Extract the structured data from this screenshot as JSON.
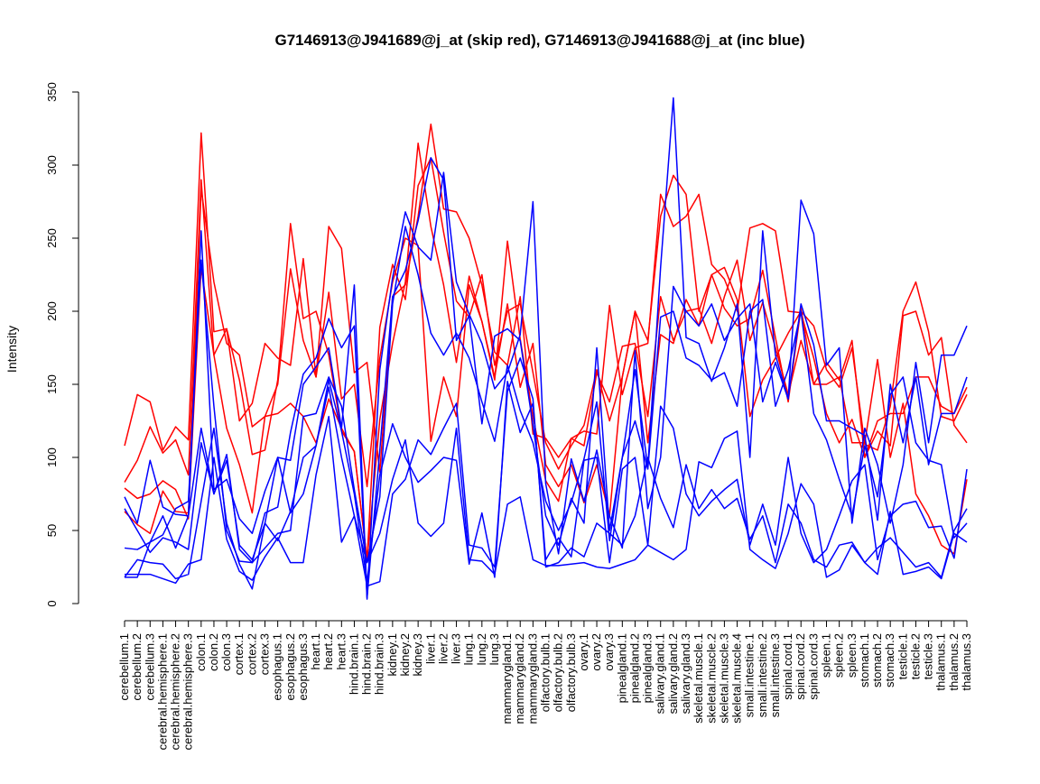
{
  "chart_data": {
    "type": "line",
    "title": "G7146913@J941689@j_at (skip red), G7146913@J941688@j_at (inc blue)",
    "xlabel": "",
    "ylabel": "Intensity",
    "ylim": [
      0,
      350
    ],
    "yticks": [
      0,
      50,
      100,
      150,
      200,
      250,
      300,
      350
    ],
    "colors": {
      "skip": "#ff0000",
      "inc": "#0000ff"
    },
    "categories": [
      "cerebellum.1",
      "cerebellum.2",
      "cerebellum.3",
      "cerebral.hemisphere.1",
      "cerebral.hemisphere.2",
      "cerebral.hemisphere.3",
      "colon.1",
      "colon.2",
      "colon.3",
      "cortex.1",
      "cortex.2",
      "cortex.3",
      "esophagus.1",
      "esophagus.2",
      "esophagus.3",
      "heart.1",
      "heart.2",
      "heart.3",
      "hind.brain.1",
      "hind.brain.2",
      "hind.brain.3",
      "kidney.1",
      "kidney.2",
      "kidney.3",
      "liver.1",
      "liver.2",
      "liver.3",
      "lung.1",
      "lung.2",
      "lung.3",
      "mammarygland.1",
      "mammarygland.2",
      "mammarygland.3",
      "olfactory.bulb.1",
      "olfactory.bulb.2",
      "olfactory.bulb.3",
      "ovary.1",
      "ovary.2",
      "ovary.3",
      "pinealgland.1",
      "pinealgland.2",
      "pinealgland.3",
      "salivary.gland.1",
      "salivary.gland.2",
      "salivary.gland.3",
      "skeletal.muscle.1",
      "skeletal.muscle.2",
      "skeletal.muscle.3",
      "skeletal.muscle.4",
      "small.intestine.1",
      "small.intestine.2",
      "small.intestine.3",
      "spinal.cord.1",
      "spinal.cord.2",
      "spinal.cord.3",
      "spleen.1",
      "spleen.2",
      "spleen.3",
      "stomach.1",
      "stomach.2",
      "stomach.3",
      "testicle.1",
      "testicle.2",
      "testicle.3",
      "thalamus.1",
      "thalamus.2",
      "thalamus.3"
    ],
    "series": [
      {
        "name": "skip-1",
        "group": "skip",
        "values": [
          108,
          143,
          138,
          105,
          121,
          112,
          322,
          186,
          188,
          125,
          137,
          178,
          168,
          163,
          236,
          155,
          258,
          243,
          158,
          165,
          90,
          210,
          218,
          265,
          328,
          270,
          268,
          250,
          218,
          172,
          163,
          210,
          116,
          113,
          100,
          113,
          118,
          116,
          204,
          143,
          175,
          178,
          280,
          258,
          265,
          280,
          232,
          222,
          200,
          257,
          260,
          255,
          200,
          199,
          168,
          130,
          110,
          126,
          100,
          118,
          108,
          197,
          200,
          170,
          182,
          122,
          110
        ]
      },
      {
        "name": "skip-2",
        "group": "skip",
        "values": [
          83,
          98,
          121,
          103,
          112,
          88,
          290,
          170,
          188,
          153,
          102,
          105,
          153,
          260,
          195,
          200,
          170,
          118,
          104,
          30,
          189,
          232,
          208,
          286,
          305,
          254,
          207,
          196,
          225,
          163,
          200,
          205,
          158,
          110,
          92,
          108,
          122,
          160,
          125,
          155,
          200,
          180,
          265,
          293,
          280,
          200,
          225,
          230,
          208,
          128,
          153,
          168,
          185,
          200,
          190,
          160,
          148,
          175,
          109,
          105,
          135,
          200,
          220,
          186,
          128,
          125,
          143
        ]
      },
      {
        "name": "skip-3",
        "group": "skip",
        "values": [
          79,
          72,
          75,
          84,
          78,
          58,
          284,
          220,
          178,
          170,
          121,
          128,
          150,
          229,
          180,
          155,
          213,
          140,
          150,
          80,
          168,
          220,
          250,
          245,
          111,
          155,
          128,
          218,
          193,
          153,
          248,
          181,
          128,
          84,
          70,
          113,
          108,
          158,
          138,
          176,
          178,
          128,
          210,
          180,
          200,
          202,
          178,
          210,
          235,
          180,
          206,
          175,
          143,
          180,
          150,
          165,
          153,
          180,
          100,
          125,
          130,
          130,
          155,
          155,
          135,
          130,
          148
        ]
      },
      {
        "name": "skip-4",
        "group": "skip",
        "values": [
          63,
          54,
          48,
          77,
          63,
          62,
          230,
          170,
          120,
          95,
          62,
          128,
          130,
          137,
          128,
          110,
          140,
          120,
          104,
          30,
          126,
          178,
          220,
          315,
          258,
          218,
          165,
          224,
          193,
          155,
          205,
          148,
          178,
          95,
          80,
          95,
          69,
          95,
          60,
          155,
          200,
          110,
          184,
          178,
          208,
          190,
          225,
          202,
          190,
          195,
          228,
          182,
          138,
          202,
          150,
          150,
          155,
          110,
          110,
          167,
          100,
          137,
          75,
          60,
          40,
          34,
          85
        ]
      },
      {
        "name": "inc-1",
        "group": "inc",
        "values": [
          73,
          55,
          98,
          66,
          61,
          60,
          255,
          78,
          85,
          58,
          48,
          77,
          100,
          98,
          150,
          162,
          175,
          120,
          218,
          4,
          105,
          210,
          228,
          262,
          305,
          290,
          180,
          197,
          123,
          183,
          188,
          180,
          122,
          60,
          40,
          72,
          55,
          175,
          50,
          100,
          160,
          93,
          230,
          346,
          182,
          178,
          152,
          175,
          205,
          100,
          255,
          170,
          140,
          276,
          253,
          163,
          175,
          55,
          120,
          95,
          55,
          95,
          165,
          110,
          170,
          170,
          190
        ]
      },
      {
        "name": "inc-2",
        "group": "inc",
        "values": [
          38,
          37,
          42,
          60,
          38,
          60,
          120,
          75,
          102,
          37,
          28,
          62,
          66,
          117,
          157,
          168,
          195,
          175,
          190,
          3,
          160,
          223,
          268,
          244,
          235,
          295,
          220,
          198,
          178,
          147,
          158,
          184,
          275,
          82,
          34,
          99,
          70,
          105,
          60,
          38,
          173,
          65,
          100,
          217,
          200,
          190,
          205,
          180,
          195,
          205,
          138,
          165,
          140,
          205,
          177,
          125,
          125,
          120,
          115,
          57,
          150,
          110,
          155,
          95,
          130,
          130,
          155
        ]
      },
      {
        "name": "inc-3",
        "group": "inc",
        "values": [
          18,
          18,
          42,
          47,
          65,
          70,
          235,
          135,
          50,
          29,
          28,
          38,
          48,
          50,
          128,
          130,
          155,
          135,
          78,
          28,
          73,
          205,
          258,
          225,
          185,
          170,
          185,
          168,
          138,
          111,
          163,
          132,
          110,
          70,
          50,
          69,
          99,
          138,
          43,
          100,
          125,
          92,
          196,
          200,
          168,
          163,
          153,
          158,
          135,
          200,
          208,
          135,
          160,
          200,
          130,
          112,
          85,
          60,
          108,
          73,
          143,
          155,
          110,
          98,
          95,
          45,
          55
        ]
      },
      {
        "name": "inc-4",
        "group": "inc",
        "values": [
          65,
          50,
          35,
          45,
          42,
          37,
          110,
          75,
          98,
          40,
          30,
          55,
          100,
          62,
          75,
          108,
          153,
          118,
          75,
          15,
          88,
          123,
          100,
          83,
          91,
          100,
          98,
          27,
          62,
          18,
          152,
          117,
          137,
          30,
          45,
          32,
          98,
          100,
          28,
          92,
          100,
          40,
          135,
          120,
          75,
          60,
          70,
          78,
          85,
          40,
          68,
          40,
          100,
          48,
          28,
          37,
          60,
          84,
          95,
          30,
          60,
          68,
          70,
          52,
          53,
          31,
          92
        ]
      },
      {
        "name": "inc-5",
        "group": "inc",
        "values": [
          18,
          30,
          28,
          27,
          17,
          20,
          70,
          120,
          55,
          27,
          10,
          55,
          43,
          63,
          100,
          108,
          148,
          100,
          60,
          12,
          15,
          75,
          85,
          112,
          102,
          120,
          137,
          40,
          38,
          25,
          145,
          168,
          140,
          25,
          28,
          38,
          32,
          55,
          48,
          40,
          60,
          100,
          72,
          52,
          95,
          65,
          78,
          65,
          72,
          44,
          60,
          28,
          68,
          55,
          30,
          25,
          40,
          42,
          28,
          38,
          45,
          35,
          25,
          28,
          18,
          50,
          65
        ]
      },
      {
        "name": "inc-6",
        "group": "inc",
        "values": [
          20,
          20,
          20,
          17,
          14,
          27,
          30,
          100,
          44,
          22,
          16,
          32,
          45,
          28,
          28,
          88,
          128,
          42,
          60,
          28,
          48,
          85,
          112,
          55,
          46,
          55,
          120,
          30,
          29,
          20,
          68,
          73,
          30,
          26,
          26,
          27,
          28,
          25,
          24,
          27,
          30,
          40,
          35,
          30,
          37,
          97,
          93,
          113,
          118,
          37,
          30,
          24,
          48,
          82,
          68,
          18,
          23,
          40,
          28,
          20,
          63,
          20,
          22,
          25,
          17,
          48,
          42
        ]
      }
    ]
  }
}
